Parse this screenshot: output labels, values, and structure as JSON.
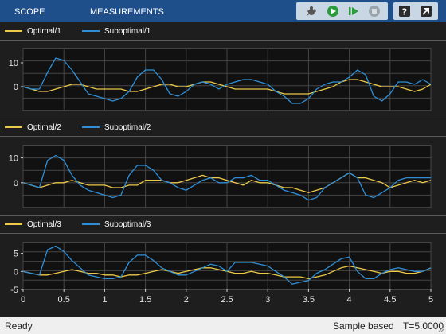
{
  "toolstrip": {
    "tabs": [
      {
        "label": "SCOPE"
      },
      {
        "label": "MEASUREMENTS"
      }
    ],
    "buttons": [
      "debug-icon",
      "run-icon",
      "step-forward-icon",
      "stop-icon",
      "help-icon",
      "undock-icon"
    ]
  },
  "colors": {
    "optimal": "#edc949",
    "suboptimal": "#2e8fd8",
    "background": "#1e1e1e",
    "plot": "#111111",
    "grid": "#454545"
  },
  "legends": [
    {
      "optimal": "Optimal/1",
      "suboptimal": "Suboptimal/1"
    },
    {
      "optimal": "Optimal/2",
      "suboptimal": "Suboptimal/2"
    },
    {
      "optimal": "Optimal/3",
      "suboptimal": "Suboptimal/3"
    }
  ],
  "chart_data": [
    {
      "type": "line",
      "xlim": [
        0,
        5
      ],
      "ylim": [
        -10,
        16
      ],
      "yticks": [
        10,
        0
      ],
      "grid": true,
      "series": [
        {
          "name": "Optimal/1",
          "x": [
            0,
            0.1,
            0.2,
            0.3,
            0.4,
            0.5,
            0.6,
            0.7,
            0.8,
            0.9,
            1.0,
            1.1,
            1.2,
            1.3,
            1.4,
            1.5,
            1.6,
            1.7,
            1.8,
            1.9,
            2.0,
            2.1,
            2.2,
            2.3,
            2.4,
            2.5,
            2.6,
            2.7,
            2.8,
            2.9,
            3.0,
            3.1,
            3.2,
            3.3,
            3.4,
            3.5,
            3.6,
            3.7,
            3.8,
            3.9,
            4.0,
            4.1,
            4.2,
            4.3,
            4.4,
            4.5,
            4.6,
            4.7,
            4.8,
            4.9,
            5.0
          ],
          "y": [
            0,
            -1,
            -2,
            -2,
            -1,
            0,
            1,
            1,
            0,
            -1,
            -1,
            -1,
            -1,
            -2,
            -2,
            -1,
            0,
            1,
            1,
            0,
            0,
            1,
            2,
            2,
            1,
            0,
            -1,
            -1,
            -1,
            -1,
            -1,
            -2,
            -3,
            -3,
            -3,
            -3,
            -2,
            -1,
            0,
            2,
            3,
            3,
            2,
            1,
            0,
            0,
            0,
            -1,
            -2,
            -1,
            1
          ]
        },
        {
          "name": "Suboptimal/1",
          "x": [
            0,
            0.1,
            0.2,
            0.3,
            0.4,
            0.5,
            0.6,
            0.7,
            0.8,
            0.9,
            1.0,
            1.1,
            1.2,
            1.3,
            1.4,
            1.5,
            1.6,
            1.7,
            1.8,
            1.9,
            2.0,
            2.1,
            2.2,
            2.3,
            2.4,
            2.5,
            2.6,
            2.7,
            2.8,
            2.9,
            3.0,
            3.1,
            3.2,
            3.3,
            3.4,
            3.5,
            3.6,
            3.7,
            3.8,
            3.9,
            4.0,
            4.1,
            4.2,
            4.3,
            4.4,
            4.5,
            4.6,
            4.7,
            4.8,
            4.9,
            5.0
          ],
          "y": [
            0,
            -1,
            -1,
            6,
            12,
            11,
            7,
            2,
            -3,
            -4,
            -5,
            -6,
            -5,
            -2,
            4,
            7,
            7,
            3,
            -3,
            -4,
            -2,
            1,
            2,
            1,
            -1,
            1,
            2,
            3,
            3,
            2,
            1,
            -2,
            -4,
            -7,
            -7,
            -5,
            -1,
            1,
            2,
            2,
            4,
            7,
            5,
            -4,
            -6,
            -3,
            2,
            2,
            1,
            3,
            1
          ]
        },
        {
          "name": "Optimal/1",
          "x": [],
          "y": []
        }
      ]
    },
    {
      "type": "line",
      "xlim": [
        0,
        5
      ],
      "ylim": [
        -10,
        15
      ],
      "yticks": [
        10,
        0
      ],
      "grid": true,
      "series": [
        {
          "name": "Optimal/2",
          "x": [
            0,
            0.1,
            0.2,
            0.3,
            0.4,
            0.5,
            0.6,
            0.7,
            0.8,
            0.9,
            1.0,
            1.1,
            1.2,
            1.3,
            1.4,
            1.5,
            1.6,
            1.7,
            1.8,
            1.9,
            2.0,
            2.1,
            2.2,
            2.3,
            2.4,
            2.5,
            2.6,
            2.7,
            2.8,
            2.9,
            3.0,
            3.1,
            3.2,
            3.3,
            3.4,
            3.5,
            3.6,
            3.7,
            3.8,
            3.9,
            4.0,
            4.1,
            4.2,
            4.3,
            4.4,
            4.5,
            4.6,
            4.7,
            4.8,
            4.9,
            5.0
          ],
          "y": [
            0,
            -1,
            -2,
            -1,
            0,
            0,
            1,
            0,
            -1,
            -1,
            -1,
            -2,
            -2,
            -1,
            -1,
            1,
            1,
            1,
            0,
            0,
            1,
            2,
            3,
            2,
            2,
            1,
            0,
            -1,
            1,
            0,
            0,
            -1,
            -2,
            -2,
            -3,
            -4,
            -3,
            -2,
            0,
            2,
            4,
            2,
            2,
            1,
            0,
            -2,
            -1,
            0,
            1,
            0,
            1
          ]
        },
        {
          "name": "Suboptimal/2",
          "x": [
            0,
            0.1,
            0.2,
            0.3,
            0.4,
            0.5,
            0.6,
            0.7,
            0.8,
            0.9,
            1.0,
            1.1,
            1.2,
            1.3,
            1.4,
            1.5,
            1.6,
            1.7,
            1.8,
            1.9,
            2.0,
            2.1,
            2.2,
            2.3,
            2.4,
            2.5,
            2.6,
            2.7,
            2.8,
            2.9,
            3.0,
            3.1,
            3.2,
            3.3,
            3.4,
            3.5,
            3.6,
            3.7,
            3.8,
            3.9,
            4.0,
            4.1,
            4.2,
            4.3,
            4.4,
            4.5,
            4.6,
            4.7,
            4.8,
            4.9,
            5.0
          ],
          "y": [
            0,
            -1,
            -2,
            9,
            11,
            9,
            3,
            -1,
            -3,
            -4,
            -5,
            -6,
            -5,
            3,
            7,
            7,
            5,
            1,
            0,
            -2,
            -3,
            -1,
            1,
            2,
            0,
            0,
            2,
            2,
            3,
            1,
            1,
            -1,
            -3,
            -4,
            -5,
            -7,
            -6,
            -2,
            0,
            2,
            4,
            2,
            -5,
            -6,
            -4,
            -2,
            1,
            2,
            2,
            2,
            2
          ]
        }
      ]
    },
    {
      "type": "line",
      "xlim": [
        0,
        5
      ],
      "ylim": [
        -5,
        8
      ],
      "yticks": [
        5,
        0,
        -5
      ],
      "xticks": [
        0,
        0.5,
        1,
        1.5,
        2,
        2.5,
        3,
        3.5,
        4,
        4.5,
        5
      ],
      "xticklabels": [
        "0",
        "0.5",
        "1",
        "1.5",
        "2",
        "2.5",
        "3",
        "3.5",
        "4",
        "4.5",
        "5"
      ],
      "grid": true,
      "series": [
        {
          "name": "Optimal/3",
          "x": [
            0,
            0.1,
            0.2,
            0.3,
            0.4,
            0.5,
            0.6,
            0.7,
            0.8,
            0.9,
            1.0,
            1.1,
            1.2,
            1.3,
            1.4,
            1.5,
            1.6,
            1.7,
            1.8,
            1.9,
            2.0,
            2.1,
            2.2,
            2.3,
            2.4,
            2.5,
            2.6,
            2.7,
            2.8,
            2.9,
            3.0,
            3.1,
            3.2,
            3.3,
            3.4,
            3.5,
            3.6,
            3.7,
            3.8,
            3.9,
            4.0,
            4.1,
            4.2,
            4.3,
            4.4,
            4.5,
            4.6,
            4.7,
            4.8,
            4.9,
            5.0
          ],
          "y": [
            0,
            -0.5,
            -1,
            -1,
            -0.5,
            0,
            0.5,
            0,
            -0.5,
            -0.5,
            -1,
            -1,
            -1.5,
            -1,
            -1,
            -0.5,
            0,
            0.5,
            0,
            -0.5,
            0,
            0.5,
            1,
            1,
            0.5,
            0,
            -0.5,
            -0.5,
            0,
            -0.5,
            -0.5,
            -1,
            -1.5,
            -1.5,
            -1.5,
            -2,
            -1.5,
            -1,
            0,
            1,
            1.5,
            1,
            0.5,
            0,
            -0.5,
            0,
            0,
            -0.5,
            -0.5,
            0,
            1
          ]
        },
        {
          "name": "Suboptimal/3",
          "x": [
            0,
            0.1,
            0.2,
            0.3,
            0.4,
            0.5,
            0.6,
            0.7,
            0.8,
            0.9,
            1.0,
            1.1,
            1.2,
            1.3,
            1.4,
            1.5,
            1.6,
            1.7,
            1.8,
            1.9,
            2.0,
            2.1,
            2.2,
            2.3,
            2.4,
            2.5,
            2.6,
            2.7,
            2.8,
            2.9,
            3.0,
            3.1,
            3.2,
            3.3,
            3.4,
            3.5,
            3.6,
            3.7,
            3.8,
            3.9,
            4.0,
            4.1,
            4.2,
            4.3,
            4.4,
            4.5,
            4.6,
            4.7,
            4.8,
            4.9,
            5.0
          ],
          "y": [
            0,
            -0.5,
            -1,
            6,
            7,
            5.5,
            3,
            1,
            -1,
            -1.5,
            -2,
            -2,
            -1.5,
            2.5,
            4.5,
            4.5,
            3,
            1,
            0,
            -1,
            -1,
            0,
            1,
            2,
            1.5,
            0,
            2.5,
            2.5,
            2.5,
            2,
            1.5,
            0,
            -1.5,
            -3.5,
            -3,
            -2.5,
            -0.5,
            0.5,
            2,
            3.5,
            4,
            0,
            -2,
            -2,
            -0.5,
            0.5,
            1,
            0.5,
            0,
            0,
            1
          ]
        }
      ]
    }
  ],
  "status": {
    "left": "Ready",
    "mode": "Sample based",
    "time": "T=5.0000"
  }
}
